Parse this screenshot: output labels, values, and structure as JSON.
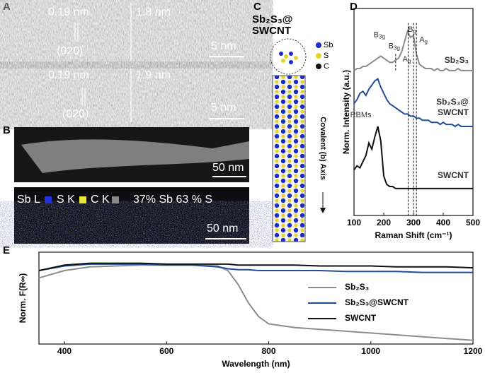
{
  "panels": {
    "A": {
      "label": "A",
      "images": [
        {
          "spacing": "0.19 nm",
          "width": "1.8 nm",
          "plane": "(020)",
          "scale_bar": "5 nm"
        },
        {
          "spacing": "0.19 nm",
          "width": "1.9 nm",
          "plane": "(020)",
          "scale_bar": "5 nm"
        }
      ]
    },
    "B": {
      "label": "B",
      "image_scale_bar": "50 nm",
      "map": {
        "legend": [
          "Sb L",
          "S K",
          "C K"
        ],
        "composition": "37% Sb 63 % S",
        "scale_bar": "50 nm"
      }
    },
    "C": {
      "label": "C",
      "title_lines": [
        "Sb₂S₃@",
        "SWCNT"
      ],
      "atoms": [
        "Sb",
        "S",
        "C"
      ],
      "axis_label": "Covalent (b) Axis"
    },
    "D": {
      "label": "D"
    },
    "E": {
      "label": "E"
    }
  },
  "chart_data": [
    {
      "type": "line",
      "xlabel": "Raman Shift (cm⁻¹)",
      "ylabel": "Norm. Intensity (a.u.)",
      "xlim": [
        100,
        500
      ],
      "xticks": [
        100,
        200,
        300,
        400,
        500
      ],
      "ylim": [
        0,
        10
      ],
      "x": [
        100,
        110,
        120,
        130,
        140,
        150,
        160,
        170,
        180,
        190,
        200,
        210,
        220,
        230,
        240,
        250,
        260,
        270,
        280,
        290,
        300,
        310,
        320,
        330,
        340,
        350,
        360,
        370,
        380,
        390,
        400,
        410,
        420,
        430,
        440,
        450,
        460,
        470,
        480,
        490,
        500
      ],
      "series": [
        {
          "name": "Sb₂S₃",
          "color": "#8c8c8c",
          "values": [
            7.0,
            7.1,
            7.1,
            7.2,
            7.2,
            7.3,
            7.4,
            7.5,
            7.6,
            7.7,
            7.6,
            7.5,
            7.4,
            7.4,
            7.5,
            7.6,
            7.9,
            8.4,
            8.9,
            8.6,
            8.7,
            7.8,
            7.3,
            7.2,
            7.1,
            7.1,
            7.1,
            7.0,
            7.1,
            7.0,
            7.0,
            7.1,
            7.0,
            7.0,
            7.0,
            7.1,
            7.0,
            7.0,
            7.0,
            7.0,
            7.0
          ]
        },
        {
          "name": "Sb₂S₃@SWCNT",
          "color": "#1f4e9c",
          "values": [
            5.4,
            5.6,
            5.9,
            6.0,
            5.8,
            6.1,
            6.3,
            6.5,
            6.6,
            6.2,
            5.9,
            5.6,
            5.4,
            5.3,
            5.2,
            5.1,
            5.0,
            4.9,
            4.9,
            4.8,
            4.8,
            4.7,
            4.7,
            4.6,
            4.6,
            4.6,
            4.5,
            4.5,
            4.5,
            4.4,
            4.5,
            4.4,
            4.4,
            4.4,
            4.3,
            4.4,
            4.3,
            4.3,
            4.3,
            4.3,
            4.3
          ]
        },
        {
          "name": "SWCNT",
          "color": "#111111",
          "values": [
            2.2,
            2.4,
            2.3,
            2.6,
            2.9,
            3.5,
            3.2,
            3.8,
            4.3,
            3.6,
            1.9,
            1.5,
            1.4,
            1.4,
            1.3,
            1.3,
            1.3,
            1.3,
            1.3,
            1.3,
            1.3,
            1.3,
            1.3,
            1.3,
            1.3,
            1.3,
            1.3,
            1.3,
            1.3,
            1.3,
            1.3,
            1.3,
            1.3,
            1.3,
            1.3,
            1.3,
            1.3,
            1.3,
            1.3,
            1.3,
            1.3
          ]
        }
      ],
      "peak_labels": [
        {
          "text": "B3g",
          "x": 190
        },
        {
          "text": "B3g",
          "x": 240
        },
        {
          "text": "Ag",
          "x": 282
        },
        {
          "text": "Bg",
          "x": 300
        },
        {
          "text": "Ag",
          "x": 310
        }
      ],
      "dashed_lines": [
        240,
        282,
        300,
        310
      ],
      "annotations": [
        "RBMs"
      ]
    },
    {
      "type": "line",
      "xlabel": "Wavelength (nm)",
      "ylabel": "Norm. F(R∞)",
      "xlim": [
        350,
        1200
      ],
      "xticks": [
        400,
        600,
        800,
        1000,
        1200
      ],
      "ylim": [
        0,
        1
      ],
      "legend": "right",
      "x": [
        350,
        400,
        450,
        500,
        550,
        600,
        650,
        700,
        720,
        740,
        760,
        780,
        800,
        850,
        900,
        950,
        1000,
        1050,
        1100,
        1150,
        1200
      ],
      "series": [
        {
          "name": "Sb₂S₃",
          "color": "#8c8c8c",
          "values": [
            0.72,
            0.8,
            0.84,
            0.85,
            0.86,
            0.86,
            0.86,
            0.85,
            0.8,
            0.65,
            0.45,
            0.3,
            0.22,
            0.18,
            0.16,
            0.14,
            0.12,
            0.1,
            0.08,
            0.06,
            0.04
          ]
        },
        {
          "name": "Sb₂S₃@SWCNT",
          "color": "#1f4e9c",
          "values": [
            0.8,
            0.85,
            0.87,
            0.87,
            0.87,
            0.86,
            0.86,
            0.84,
            0.82,
            0.81,
            0.81,
            0.8,
            0.8,
            0.8,
            0.8,
            0.79,
            0.79,
            0.79,
            0.78,
            0.78,
            0.78
          ]
        },
        {
          "name": "SWCNT",
          "color": "#111111",
          "values": [
            0.8,
            0.86,
            0.88,
            0.88,
            0.88,
            0.87,
            0.87,
            0.87,
            0.87,
            0.86,
            0.86,
            0.86,
            0.86,
            0.86,
            0.85,
            0.85,
            0.85,
            0.84,
            0.84,
            0.84,
            0.83
          ]
        }
      ]
    }
  ]
}
